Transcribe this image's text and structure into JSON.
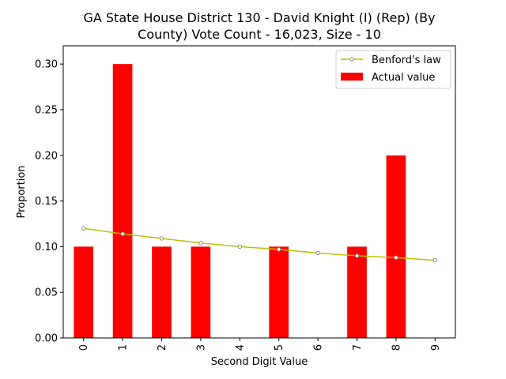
{
  "chart_data": {
    "type": "bar",
    "title_lines": [
      "GA State House District 130 - David Knight (I) (Rep) (By",
      "County) Vote Count - 16,023, Size - 10"
    ],
    "xlabel": "Second Digit Value",
    "ylabel": "Proportion",
    "categories": [
      "0",
      "1",
      "2",
      "3",
      "4",
      "5",
      "6",
      "7",
      "8",
      "9"
    ],
    "ylim": [
      0,
      0.32
    ],
    "yticks": [
      0.0,
      0.05,
      0.1,
      0.15,
      0.2,
      0.25,
      0.3
    ],
    "ytick_labels": [
      "0.00",
      "0.05",
      "0.10",
      "0.15",
      "0.20",
      "0.25",
      "0.30"
    ],
    "grid": false,
    "legend_position": "top-right",
    "series": [
      {
        "name": "Benford's law",
        "kind": "line",
        "color": "#bfbf00",
        "values": [
          0.12,
          0.114,
          0.109,
          0.104,
          0.1,
          0.097,
          0.093,
          0.09,
          0.088,
          0.085
        ]
      },
      {
        "name": "Actual value",
        "kind": "bar",
        "color": "#ff0000",
        "values": [
          0.1,
          0.3,
          0.1,
          0.1,
          0.0,
          0.1,
          0.0,
          0.1,
          0.2,
          0.0
        ]
      }
    ]
  }
}
